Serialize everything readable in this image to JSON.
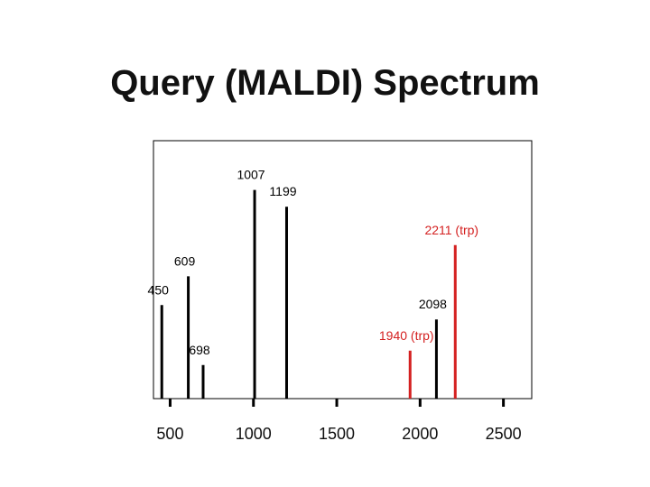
{
  "slide": {
    "title": "Query (MALDI) Spectrum"
  },
  "colors": {
    "default_peak": "#000000",
    "highlight_peak": "#d42020",
    "frame": "#000000"
  },
  "chart_data": {
    "type": "bar",
    "title": "Query (MALDI) Spectrum",
    "xlabel": "",
    "ylabel": "",
    "xlim": [
      400,
      2670
    ],
    "ylim": [
      0,
      100
    ],
    "x_ticks": [
      500,
      1000,
      1500,
      2000,
      2500
    ],
    "grid": false,
    "legend": "none",
    "peaks": [
      {
        "mz": 450,
        "label": "450",
        "intensity": 39,
        "highlight": false
      },
      {
        "mz": 609,
        "label": "609",
        "intensity": 51,
        "highlight": false
      },
      {
        "mz": 698,
        "label": "698",
        "intensity": 14,
        "highlight": false
      },
      {
        "mz": 1007,
        "label": "1007",
        "intensity": 87,
        "highlight": false
      },
      {
        "mz": 1199,
        "label": "1199",
        "intensity": 80,
        "highlight": false
      },
      {
        "mz": 1940,
        "label": "1940 (trp)",
        "intensity": 20,
        "highlight": true
      },
      {
        "mz": 2098,
        "label": "2098",
        "intensity": 33,
        "highlight": false
      },
      {
        "mz": 2211,
        "label": "2211 (trp)",
        "intensity": 64,
        "highlight": true
      }
    ]
  }
}
